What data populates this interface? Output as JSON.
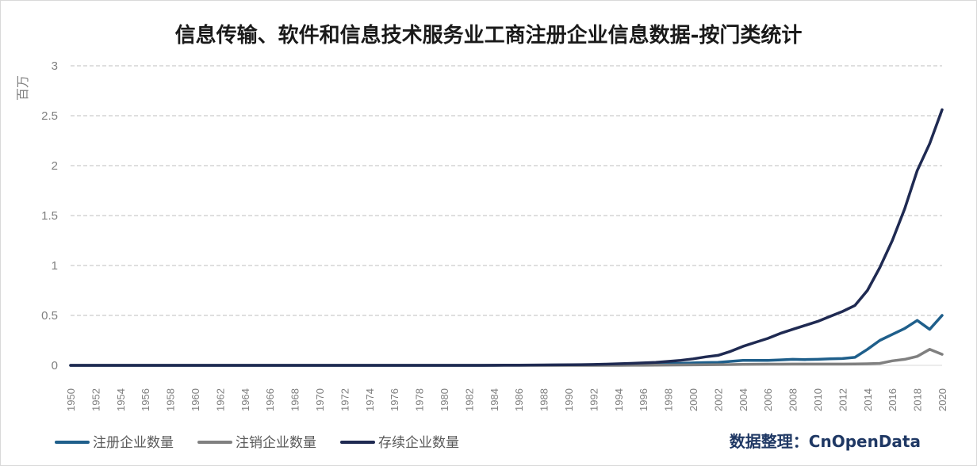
{
  "chart_data": {
    "type": "line",
    "title": "信息传输、软件和信息技术服务业工商注册企业信息数据-按门类统计",
    "ylabel": "百万",
    "xlabel": "",
    "ylim": [
      0,
      3
    ],
    "y_ticks": [
      "0",
      "0.5",
      "1",
      "1.5",
      "2",
      "2.5",
      "3"
    ],
    "grid": true,
    "legend_position": "bottom-left",
    "credit": "数据整理：CnOpenData",
    "x": [
      1950,
      1951,
      1952,
      1953,
      1954,
      1955,
      1956,
      1957,
      1958,
      1959,
      1960,
      1961,
      1962,
      1963,
      1964,
      1965,
      1966,
      1967,
      1968,
      1969,
      1970,
      1971,
      1972,
      1973,
      1974,
      1975,
      1976,
      1977,
      1978,
      1979,
      1980,
      1981,
      1982,
      1983,
      1984,
      1985,
      1986,
      1987,
      1988,
      1989,
      1990,
      1991,
      1992,
      1993,
      1994,
      1995,
      1996,
      1997,
      1998,
      1999,
      2000,
      2001,
      2002,
      2003,
      2004,
      2005,
      2006,
      2007,
      2008,
      2009,
      2010,
      2011,
      2012,
      2013,
      2014,
      2015,
      2016,
      2017,
      2018,
      2019,
      2020
    ],
    "x_tick_labels": [
      "1950",
      "1952",
      "1954",
      "1956",
      "1958",
      "1960",
      "1962",
      "1964",
      "1966",
      "1968",
      "1970",
      "1972",
      "1974",
      "1976",
      "1978",
      "1980",
      "1982",
      "1984",
      "1986",
      "1988",
      "1990",
      "1992",
      "1994",
      "1996",
      "1998",
      "2000",
      "2002",
      "2004",
      "2006",
      "2008",
      "2010",
      "2012",
      "2014",
      "2016",
      "2018",
      "2020"
    ],
    "series": [
      {
        "name": "注册企业数量",
        "color": "#1f5f8b",
        "values": [
          0,
          0,
          0,
          0,
          0,
          0,
          0,
          0,
          0,
          0,
          0,
          0,
          0,
          0,
          0,
          0,
          0,
          0,
          0,
          0,
          0,
          0,
          0,
          0,
          0,
          0,
          0,
          0,
          0,
          0,
          0,
          0,
          0,
          0,
          0,
          0.001,
          0.001,
          0.002,
          0.002,
          0.003,
          0.003,
          0.004,
          0.006,
          0.008,
          0.01,
          0.012,
          0.014,
          0.016,
          0.018,
          0.02,
          0.025,
          0.028,
          0.03,
          0.04,
          0.05,
          0.05,
          0.05,
          0.055,
          0.06,
          0.058,
          0.06,
          0.065,
          0.068,
          0.08,
          0.16,
          0.25,
          0.31,
          0.37,
          0.45,
          0.36,
          0.5
        ]
      },
      {
        "name": "注销企业数量",
        "color": "#808080",
        "values": [
          0,
          0,
          0,
          0,
          0,
          0,
          0,
          0,
          0,
          0,
          0,
          0,
          0,
          0,
          0,
          0,
          0,
          0,
          0,
          0,
          0,
          0,
          0,
          0,
          0,
          0,
          0,
          0,
          0,
          0,
          0,
          0,
          0,
          0,
          0,
          0,
          0,
          0,
          0,
          0,
          0,
          0,
          0,
          0,
          0,
          0.001,
          0.001,
          0.002,
          0.003,
          0.004,
          0.005,
          0.006,
          0.007,
          0.008,
          0.01,
          0.011,
          0.012,
          0.012,
          0.013,
          0.013,
          0.013,
          0.013,
          0.013,
          0.014,
          0.016,
          0.02,
          0.045,
          0.06,
          0.09,
          0.16,
          0.11
        ]
      },
      {
        "name": "存续企业数量",
        "color": "#1f2a52",
        "values": [
          0,
          0,
          0,
          0,
          0,
          0,
          0,
          0,
          0,
          0,
          0,
          0,
          0,
          0,
          0,
          0,
          0,
          0,
          0,
          0,
          0,
          0,
          0,
          0,
          0,
          0,
          0,
          0,
          0,
          0,
          0,
          0,
          0,
          0,
          0.001,
          0.002,
          0.002,
          0.003,
          0.004,
          0.005,
          0.006,
          0.007,
          0.009,
          0.012,
          0.016,
          0.02,
          0.025,
          0.03,
          0.04,
          0.05,
          0.065,
          0.085,
          0.1,
          0.14,
          0.19,
          0.23,
          0.27,
          0.32,
          0.36,
          0.4,
          0.44,
          0.49,
          0.54,
          0.6,
          0.75,
          0.98,
          1.25,
          1.57,
          1.95,
          2.22,
          2.56
        ]
      }
    ]
  }
}
